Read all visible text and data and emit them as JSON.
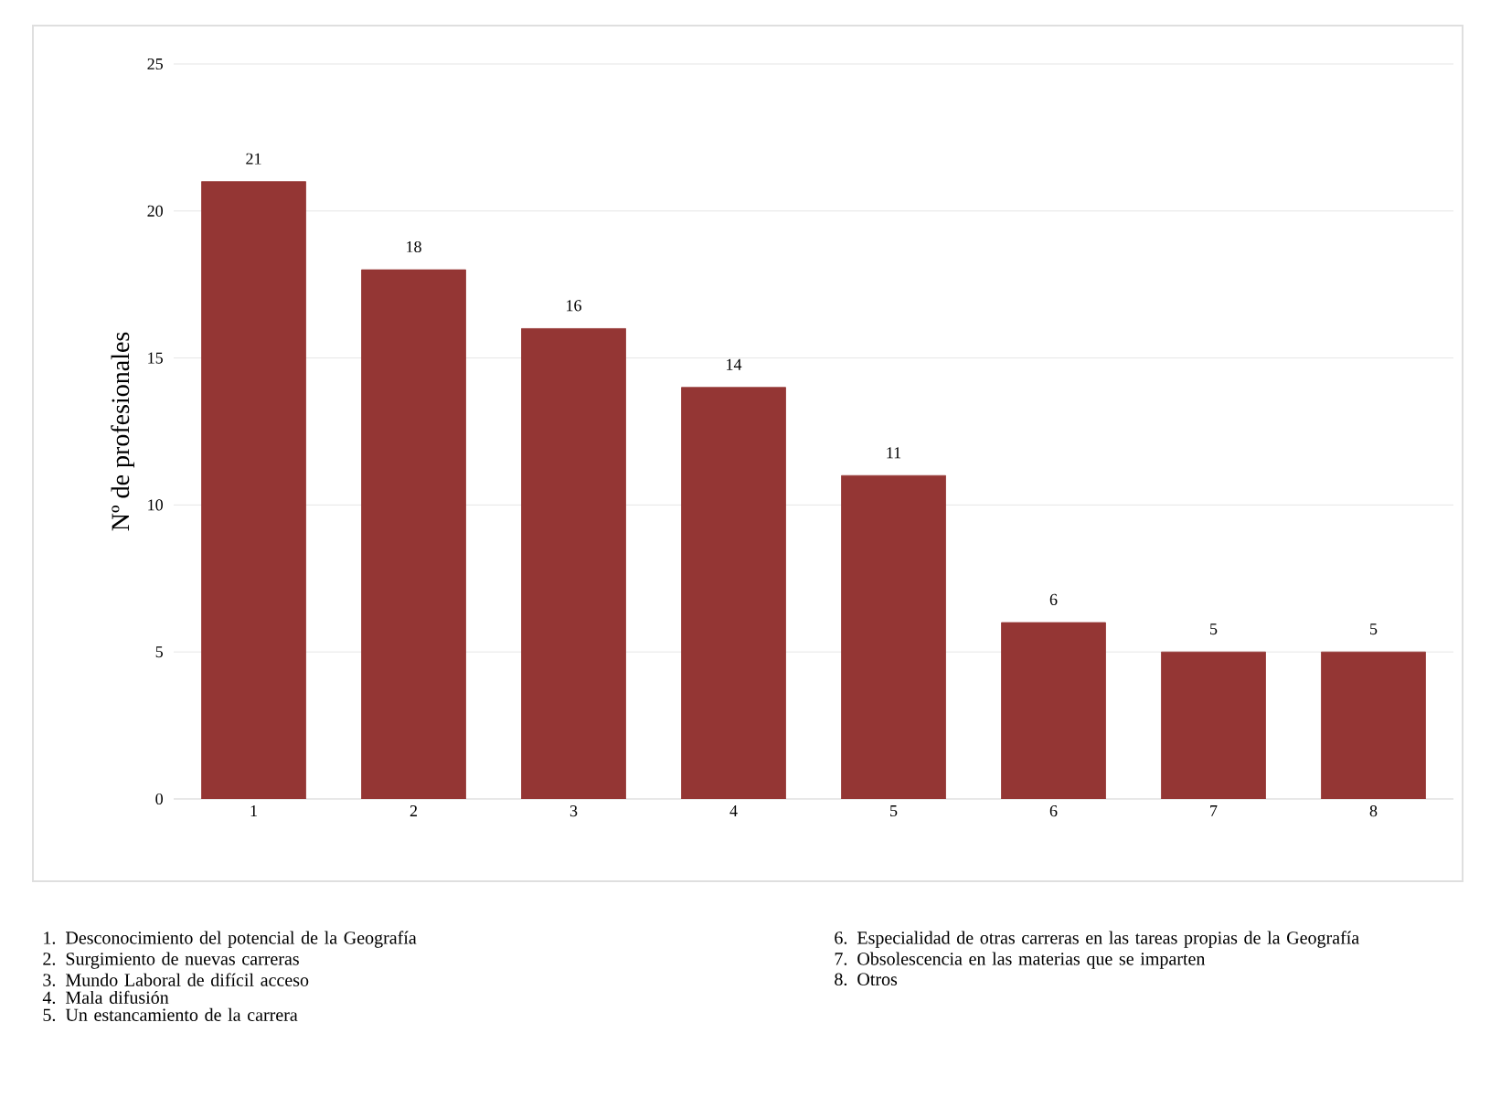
{
  "chart_data": {
    "type": "bar",
    "ylabel": "Nº de profesionales",
    "categories": [
      "1",
      "2",
      "3",
      "4",
      "5",
      "6",
      "7",
      "8"
    ],
    "values": [
      21,
      18,
      16,
      14,
      11,
      6,
      5,
      5
    ],
    "color": "#943634",
    "ylim": [
      0,
      25
    ],
    "yticks": [
      0,
      5,
      10,
      15,
      20,
      25
    ],
    "grid": "y",
    "data_labels": true,
    "annotations": [
      "1. Desconocimiento del potencial de la Geografía",
      "2. Surgimiento de nuevas carreras",
      "3. Mundo Laboral de difícil acceso",
      "4. Mala difusión",
      "5. Un estancamiento de la carrera",
      "6. Especialidad de otras carreras en las tareas propias de la Geografía",
      "7. Obsolescencia en las materias que se imparten",
      "8. Otros"
    ]
  }
}
